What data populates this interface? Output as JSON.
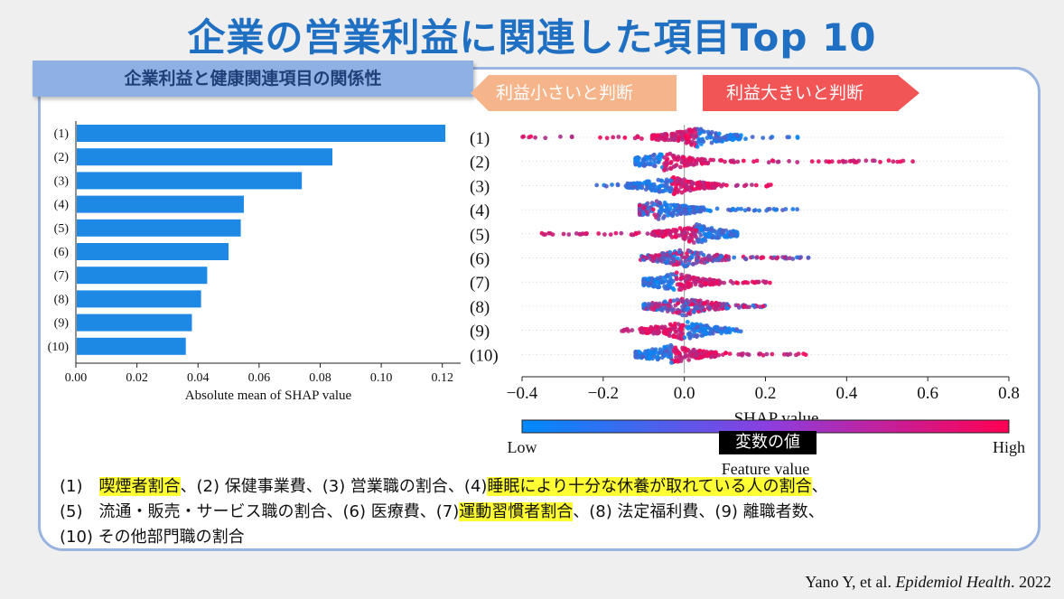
{
  "title": "企業の営業利益に関連した項目Top 10",
  "subtitle": "企業利益と健康関連項目の関係性",
  "arrows": {
    "left": "利益小さいと判断",
    "right": "利益大きいと判断"
  },
  "colors": {
    "bar": "#1e88e5",
    "low": "#008afb",
    "high": "#ff0052"
  },
  "chart_data": [
    {
      "type": "bar",
      "orientation": "horizontal",
      "categories": [
        "(1)",
        "(2)",
        "(3)",
        "(4)",
        "(5)",
        "(6)",
        "(7)",
        "(8)",
        "(9)",
        "(10)"
      ],
      "values": [
        0.121,
        0.084,
        0.074,
        0.055,
        0.054,
        0.05,
        0.043,
        0.041,
        0.038,
        0.036
      ],
      "xlabel": "Absolute mean of SHAP value",
      "xlim": [
        0,
        0.126
      ],
      "xticks": [
        "0.00",
        "0.02",
        "0.04",
        "0.06",
        "0.08",
        "0.10",
        "0.12"
      ],
      "xtick_values": [
        0,
        0.02,
        0.04,
        0.06,
        0.08,
        0.1,
        0.12
      ]
    },
    {
      "type": "scatter",
      "subtype": "shap-beeswarm",
      "categories": [
        "(1)",
        "(2)",
        "(3)",
        "(4)",
        "(5)",
        "(6)",
        "(7)",
        "(8)",
        "(9)",
        "(10)"
      ],
      "series": [
        {
          "name": "(1)",
          "min": -0.4,
          "max": 0.29,
          "center": 0.03,
          "low_side": "right",
          "high_side": "left"
        },
        {
          "name": "(2)",
          "min": -0.12,
          "max": 0.61,
          "center": -0.05,
          "low_side": "left",
          "high_side": "right"
        },
        {
          "name": "(3)",
          "min": -0.22,
          "max": 0.22,
          "center": -0.03,
          "low_side": "left",
          "high_side": "right"
        },
        {
          "name": "(4)",
          "min": -0.11,
          "max": 0.28,
          "center": -0.06,
          "low_side": "right",
          "high_side": "mixed"
        },
        {
          "name": "(5)",
          "min": -0.4,
          "max": 0.13,
          "center": 0.03,
          "low_side": "right",
          "high_side": "left"
        },
        {
          "name": "(6)",
          "min": -0.11,
          "max": 0.31,
          "center": 0.0,
          "low_side": "mixed",
          "high_side": "mixed"
        },
        {
          "name": "(7)",
          "min": -0.1,
          "max": 0.23,
          "center": -0.02,
          "low_side": "left",
          "high_side": "right"
        },
        {
          "name": "(8)",
          "min": -0.1,
          "max": 0.2,
          "center": 0.0,
          "low_side": "mixed",
          "high_side": "mixed"
        },
        {
          "name": "(9)",
          "min": -0.16,
          "max": 0.14,
          "center": 0.0,
          "low_side": "right",
          "high_side": "left"
        },
        {
          "name": "(10)",
          "min": -0.12,
          "max": 0.3,
          "center": -0.03,
          "low_side": "left",
          "high_side": "right"
        }
      ],
      "xlabel": "SHAP value",
      "xlim": [
        -0.4,
        0.8
      ],
      "xticks": [
        "−0.4",
        "−0.2",
        "0.0",
        "0.2",
        "0.4",
        "0.6",
        "0.8"
      ],
      "xtick_values": [
        -0.4,
        -0.2,
        0.0,
        0.2,
        0.4,
        0.6,
        0.8
      ],
      "colorbar": {
        "low": "Low",
        "high": "High",
        "label": "Feature value",
        "overlay_label": "変数の値"
      }
    }
  ],
  "legend": {
    "line1": [
      {
        "text": "(1)　",
        "hl": false
      },
      {
        "text": "喫煙者割合",
        "hl": true
      },
      {
        "text": "、(2) 保健事業費、(3) 営業職の割合、(4)",
        "hl": false
      },
      {
        "text": "睡眠により十分な休養が取れている人の割合",
        "hl": true
      },
      {
        "text": "、",
        "hl": false
      }
    ],
    "line2": [
      {
        "text": "(5)　流通・販売・サービス職の割合、(6) 医療費、(7)",
        "hl": false
      },
      {
        "text": "運動習慣者割合",
        "hl": true
      },
      {
        "text": "、(8) 法定福利費、(9) 離職者数、",
        "hl": false
      }
    ],
    "line3": [
      {
        "text": "(10) その他部門職の割合",
        "hl": false
      }
    ]
  },
  "citation": {
    "authors": "Yano Y, et al. ",
    "journal": "Epidemiol Health",
    "year": ". 2022"
  }
}
